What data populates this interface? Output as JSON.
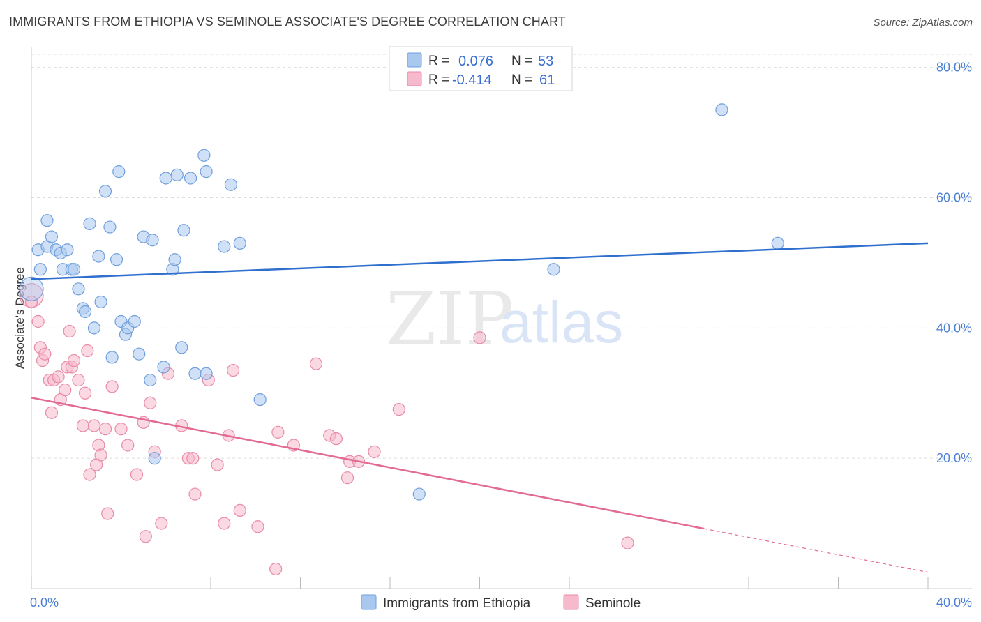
{
  "header": {
    "title": "IMMIGRANTS FROM ETHIOPIA VS SEMINOLE ASSOCIATE'S DEGREE CORRELATION CHART",
    "source": "Source: ZipAtlas.com"
  },
  "watermark": {
    "zip": "ZIP",
    "atlas": "atlas"
  },
  "colors": {
    "blue_fill": "#a9c8f0",
    "blue_stroke": "#6f9fdc",
    "blue_line": "#2f6fce",
    "pink_fill": "#f7b9cc",
    "pink_stroke": "#e88aa8",
    "pink_line": "#e26a93",
    "grid": "#dddddd",
    "axis_label": "#4a7fd4"
  },
  "legend": {
    "rows": [
      {
        "r_label": "R =",
        "r_value": "0.076",
        "n_label": "N =",
        "n_value": "53"
      },
      {
        "r_label": "R =",
        "r_value": "-0.414",
        "n_label": "N =",
        "n_value": "61"
      }
    ]
  },
  "bottom_legend": {
    "items": [
      "Immigrants from Ethiopia",
      "Seminole"
    ]
  },
  "chart_data": {
    "type": "scatter",
    "title": "IMMIGRANTS FROM ETHIOPIA VS SEMINOLE ASSOCIATE'S DEGREE CORRELATION CHART",
    "xlabel": "",
    "ylabel": "Associate's Degree",
    "xlim": [
      0,
      40
    ],
    "ylim": [
      0,
      82
    ],
    "x_tick_labels": [
      {
        "value": 0,
        "label": "0.0%"
      },
      {
        "value": 40,
        "label": "40.0%"
      }
    ],
    "y_tick_labels": [
      {
        "value": 20,
        "label": "20.0%"
      },
      {
        "value": 40,
        "label": "40.0%"
      },
      {
        "value": 60,
        "label": "60.0%"
      },
      {
        "value": 80,
        "label": "80.0%"
      }
    ],
    "x_minor_ticks": [
      0,
      4,
      8,
      12,
      16,
      20,
      24,
      28,
      32,
      36,
      40
    ],
    "series": [
      {
        "name": "Immigrants from Ethiopia",
        "R": 0.076,
        "N": 53,
        "trend": {
          "x0": 0,
          "y0": 47.5,
          "x1": 40,
          "y1": 53.0
        },
        "points": [
          [
            0.0,
            46.0
          ],
          [
            0.3,
            52.0
          ],
          [
            0.4,
            49.0
          ],
          [
            0.7,
            56.5
          ],
          [
            0.7,
            52.5
          ],
          [
            0.9,
            54.0
          ],
          [
            1.1,
            52.0
          ],
          [
            1.3,
            51.5
          ],
          [
            1.4,
            49.0
          ],
          [
            1.6,
            52.0
          ],
          [
            1.8,
            49.0
          ],
          [
            1.9,
            49.0
          ],
          [
            2.1,
            46.0
          ],
          [
            2.3,
            43.0
          ],
          [
            2.4,
            42.5
          ],
          [
            2.6,
            56.0
          ],
          [
            2.8,
            40.0
          ],
          [
            3.0,
            51.0
          ],
          [
            3.1,
            44.0
          ],
          [
            3.3,
            61.0
          ],
          [
            3.5,
            55.5
          ],
          [
            3.6,
            35.5
          ],
          [
            3.8,
            50.5
          ],
          [
            3.9,
            64.0
          ],
          [
            4.0,
            41.0
          ],
          [
            4.2,
            39.0
          ],
          [
            4.3,
            40.0
          ],
          [
            4.6,
            41.0
          ],
          [
            4.8,
            36.0
          ],
          [
            5.0,
            54.0
          ],
          [
            5.3,
            32.0
          ],
          [
            5.4,
            53.5
          ],
          [
            5.5,
            20.0
          ],
          [
            5.9,
            34.0
          ],
          [
            6.0,
            63.0
          ],
          [
            6.3,
            49.0
          ],
          [
            6.4,
            50.5
          ],
          [
            6.5,
            63.5
          ],
          [
            6.7,
            37.0
          ],
          [
            6.8,
            55.0
          ],
          [
            7.1,
            63.0
          ],
          [
            7.3,
            33.0
          ],
          [
            7.7,
            66.5
          ],
          [
            7.8,
            64.0
          ],
          [
            7.8,
            33.0
          ],
          [
            8.6,
            52.5
          ],
          [
            8.9,
            62.0
          ],
          [
            9.3,
            53.0
          ],
          [
            10.2,
            29.0
          ],
          [
            17.3,
            14.5
          ],
          [
            23.3,
            49.0
          ],
          [
            30.8,
            73.5
          ],
          [
            33.3,
            53.0
          ]
        ]
      },
      {
        "name": "Seminole",
        "R": -0.414,
        "N": 61,
        "trend": {
          "x0": 0,
          "y0": 29.3,
          "x1": 30.0,
          "y1": 9.2,
          "dash_x1": 40,
          "dash_y1": 2.5
        },
        "points": [
          [
            0.0,
            45.0
          ],
          [
            0.3,
            41.0
          ],
          [
            0.4,
            37.0
          ],
          [
            0.5,
            35.0
          ],
          [
            0.6,
            36.0
          ],
          [
            0.8,
            32.0
          ],
          [
            0.9,
            27.0
          ],
          [
            1.0,
            32.0
          ],
          [
            1.2,
            32.5
          ],
          [
            1.3,
            29.0
          ],
          [
            1.5,
            30.5
          ],
          [
            1.6,
            34.0
          ],
          [
            1.7,
            39.5
          ],
          [
            1.8,
            34.0
          ],
          [
            1.9,
            35.0
          ],
          [
            2.1,
            32.0
          ],
          [
            2.3,
            25.0
          ],
          [
            2.4,
            30.0
          ],
          [
            2.5,
            36.5
          ],
          [
            2.6,
            17.5
          ],
          [
            2.8,
            25.0
          ],
          [
            2.9,
            19.0
          ],
          [
            3.0,
            22.0
          ],
          [
            3.1,
            20.5
          ],
          [
            3.3,
            24.5
          ],
          [
            3.4,
            11.5
          ],
          [
            3.6,
            31.0
          ],
          [
            4.0,
            24.5
          ],
          [
            4.3,
            22.0
          ],
          [
            4.7,
            17.5
          ],
          [
            5.0,
            25.5
          ],
          [
            5.1,
            8.0
          ],
          [
            5.3,
            28.5
          ],
          [
            5.5,
            21.0
          ],
          [
            5.8,
            10.0
          ],
          [
            6.1,
            33.0
          ],
          [
            6.7,
            25.0
          ],
          [
            7.0,
            20.0
          ],
          [
            7.2,
            20.0
          ],
          [
            7.3,
            14.5
          ],
          [
            7.9,
            32.0
          ],
          [
            8.3,
            19.0
          ],
          [
            8.6,
            10.0
          ],
          [
            8.8,
            23.5
          ],
          [
            9.0,
            33.5
          ],
          [
            9.3,
            12.0
          ],
          [
            10.1,
            9.5
          ],
          [
            10.9,
            3.0
          ],
          [
            11.0,
            24.0
          ],
          [
            11.7,
            22.0
          ],
          [
            12.7,
            34.5
          ],
          [
            13.3,
            23.5
          ],
          [
            13.6,
            23.0
          ],
          [
            14.1,
            17.0
          ],
          [
            14.2,
            19.5
          ],
          [
            14.6,
            19.5
          ],
          [
            15.3,
            21.0
          ],
          [
            16.4,
            27.5
          ],
          [
            20.0,
            38.5
          ],
          [
            26.6,
            7.0
          ],
          [
            0.0,
            44.0
          ]
        ]
      }
    ]
  }
}
